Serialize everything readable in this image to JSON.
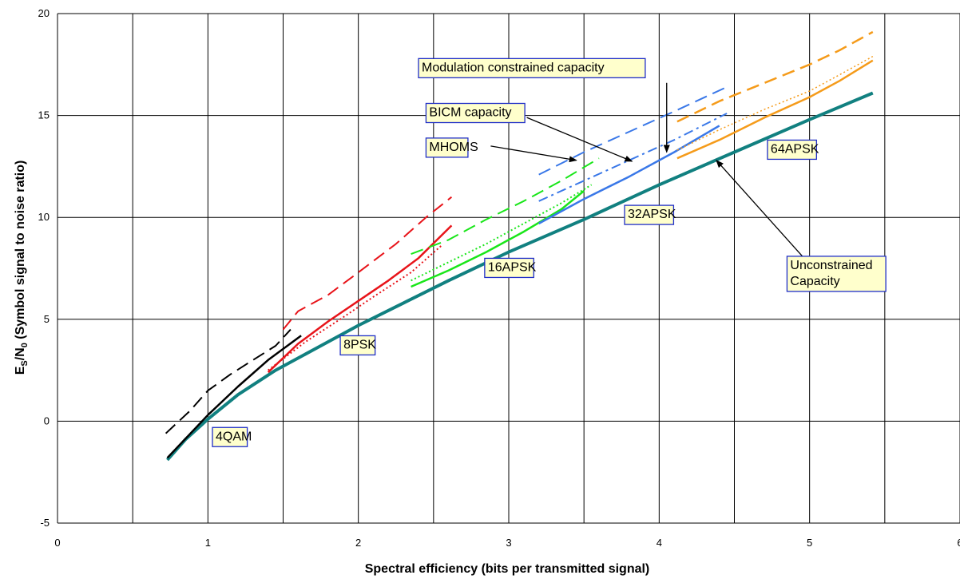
{
  "chart_data": {
    "type": "line",
    "xlabel": "Spectral efficiency (bits per transmitted signal)",
    "ylabel": {
      "main": "E",
      "sub1": "S",
      "mid": "/N",
      "sub2": "0",
      "rest": " (Symbol signal to noise ratio)"
    },
    "xlim": [
      0,
      6
    ],
    "ylim": [
      -5,
      20
    ],
    "xticks": [
      0,
      1,
      2,
      3,
      4,
      5,
      6
    ],
    "yticks": [
      -5,
      0,
      5,
      10,
      15,
      20
    ],
    "grid": true,
    "legend": "none",
    "colors": {
      "unconstrained": "#118080",
      "qam4": "#000000",
      "psk8": "#e8141a",
      "apsk16": "#19e619",
      "apsk32": "#3a78e8",
      "apsk64": "#f59b1a",
      "label_border": "#1f2ec8",
      "label_fill": "#ffffcc"
    },
    "series": [
      {
        "color_key": "unconstrained",
        "style": "solid",
        "width": 4,
        "x": [
          0.73,
          0.85,
          1.0,
          1.2,
          1.45,
          1.7,
          2.0,
          2.3,
          2.6,
          3.0,
          3.5,
          4.0,
          4.5,
          5.0,
          5.42
        ],
        "y": [
          -1.9,
          -0.9,
          0.1,
          1.3,
          2.5,
          3.5,
          4.7,
          5.8,
          6.9,
          8.3,
          9.9,
          11.6,
          13.2,
          14.8,
          16.1
        ]
      },
      {
        "color_key": "qam4",
        "style": "solid",
        "width": 2.5,
        "x": [
          0.73,
          1.0,
          1.2,
          1.4,
          1.62
        ],
        "y": [
          -1.8,
          0.3,
          1.7,
          3.0,
          4.2
        ]
      },
      {
        "color_key": "qam4",
        "style": "dashed",
        "width": 2,
        "x": [
          0.72,
          0.88,
          1.0,
          1.15,
          1.3,
          1.45,
          1.55
        ],
        "y": [
          -0.6,
          0.5,
          1.5,
          2.3,
          3.0,
          3.7,
          4.5
        ]
      },
      {
        "color_key": "psk8",
        "style": "solid",
        "width": 2.5,
        "x": [
          1.4,
          1.6,
          1.8,
          2.0,
          2.2,
          2.4,
          2.62
        ],
        "y": [
          2.4,
          3.8,
          4.9,
          5.9,
          6.9,
          8.0,
          9.6
        ]
      },
      {
        "color_key": "psk8",
        "style": "dotted",
        "width": 2,
        "x": [
          1.4,
          1.65,
          1.9,
          2.1,
          2.35,
          2.55
        ],
        "y": [
          2.5,
          3.9,
          5.1,
          6.1,
          7.3,
          8.6
        ]
      },
      {
        "color_key": "psk8",
        "style": "dashed",
        "width": 2,
        "x": [
          1.5,
          1.6,
          1.8,
          2.0,
          2.25,
          2.45,
          2.62
        ],
        "y": [
          4.5,
          5.4,
          6.2,
          7.3,
          8.7,
          10.0,
          11.0
        ]
      },
      {
        "color_key": "apsk16",
        "style": "solid",
        "width": 2.5,
        "x": [
          2.35,
          2.6,
          2.85,
          3.1,
          3.35,
          3.5
        ],
        "y": [
          6.6,
          7.4,
          8.3,
          9.3,
          10.4,
          11.3
        ]
      },
      {
        "color_key": "apsk16",
        "style": "dotted",
        "width": 2,
        "x": [
          2.35,
          2.6,
          2.85,
          3.1,
          3.35,
          3.55
        ],
        "y": [
          6.9,
          7.8,
          8.7,
          9.7,
          10.7,
          11.6
        ]
      },
      {
        "color_key": "apsk16",
        "style": "dashed",
        "width": 2,
        "x": [
          2.35,
          2.6,
          2.85,
          3.1,
          3.35,
          3.6
        ],
        "y": [
          8.2,
          8.9,
          9.9,
          10.8,
          11.8,
          12.9
        ]
      },
      {
        "color_key": "apsk32",
        "style": "solid",
        "width": 2.5,
        "x": [
          3.2,
          3.5,
          3.8,
          4.1,
          4.4
        ],
        "y": [
          9.7,
          10.9,
          12.0,
          13.2,
          14.5
        ]
      },
      {
        "color_key": "apsk32",
        "style": "dashdot",
        "width": 2,
        "x": [
          3.2,
          3.5,
          3.8,
          4.1,
          4.45
        ],
        "y": [
          10.8,
          11.8,
          12.8,
          13.8,
          15.1
        ]
      },
      {
        "color_key": "apsk32",
        "style": "dashed",
        "width": 2,
        "x": [
          3.2,
          3.5,
          3.8,
          4.1,
          4.45
        ],
        "y": [
          12.1,
          13.2,
          14.2,
          15.2,
          16.4
        ]
      },
      {
        "color_key": "apsk64",
        "style": "solid",
        "width": 2.5,
        "x": [
          4.12,
          4.4,
          4.7,
          5.0,
          5.2,
          5.42
        ],
        "y": [
          12.9,
          13.8,
          14.9,
          15.9,
          16.7,
          17.7
        ]
      },
      {
        "color_key": "apsk64",
        "style": "dotted",
        "width": 1.5,
        "x": [
          4.12,
          4.4,
          4.7,
          5.0,
          5.2,
          5.42
        ],
        "y": [
          13.3,
          14.3,
          15.3,
          16.2,
          17.0,
          17.9
        ]
      },
      {
        "color_key": "apsk64",
        "style": "dashed",
        "width": 2.5,
        "x": [
          4.12,
          4.4,
          4.7,
          5.0,
          5.2,
          5.42
        ],
        "y": [
          14.7,
          15.7,
          16.6,
          17.5,
          18.2,
          19.1
        ]
      }
    ],
    "annotations": [
      {
        "text": "Modulation constrained capacity",
        "box_x": 2.4,
        "box_y": 17.4,
        "arrow_from": [
          4.05,
          16.6
        ],
        "arrow_to": [
          4.05,
          13.2
        ]
      },
      {
        "text": "BICM capacity",
        "box_x": 2.45,
        "box_y": 15.2,
        "arrow_from": [
          3.12,
          14.9
        ],
        "arrow_to": [
          3.82,
          12.75
        ]
      },
      {
        "text": "MHOMS",
        "box_x": 2.45,
        "box_y": 13.5,
        "arrow_from": [
          2.88,
          13.5
        ],
        "arrow_to": [
          3.45,
          12.8
        ]
      },
      {
        "text": "Unconstrained Capacity",
        "box_x": 4.85,
        "box_y": 7.7,
        "arrow_from": [
          5.0,
          7.7
        ],
        "arrow_to": [
          4.38,
          12.8
        ]
      },
      {
        "text": "64APSK",
        "box_x": 4.72,
        "box_y": 13.4
      },
      {
        "text": "32APSK",
        "box_x": 3.77,
        "box_y": 10.2
      },
      {
        "text": "16APSK",
        "box_x": 2.84,
        "box_y": 7.6
      },
      {
        "text": "8PSK",
        "box_x": 1.88,
        "box_y": 3.8
      },
      {
        "text": "4QAM",
        "box_x": 1.03,
        "box_y": -0.7
      }
    ]
  }
}
